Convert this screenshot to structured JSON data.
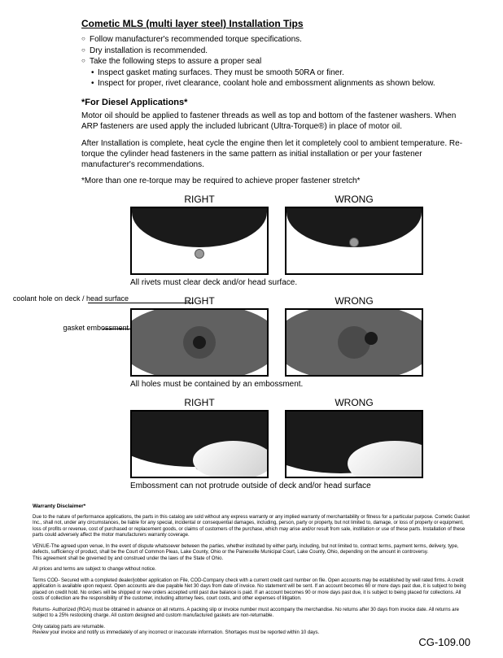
{
  "title": "Cometic MLS (multi layer steel) Installation Tips",
  "bullets": {
    "b1": "Follow manufacturer's recommended torque specifications.",
    "b2": "Dry installation is recommended.",
    "b3": "Take the following steps to assure a proper seal",
    "s1": "Inspect gasket mating surfaces.  They must be smooth 50RA or finer.",
    "s2": "Inspect for proper, rivet clearance, coolant hole and embossment alignments as shown below."
  },
  "diesel": {
    "heading": "*For Diesel Applications*",
    "p1": "Motor oil should be applied to fastener threads as well as top and bottom of the fastener washers. When ARP fasteners are used apply the included lubricant (Ultra-Torque®) in place of motor oil.",
    "p2": "After Installation is complete, heat cycle the engine then let it completely cool to ambient temperature. Re-torque the cylinder head fasteners in the same pattern as initial installation or per your fastener manufacturer's recommendations.",
    "note": "*More than one re-torque may be required to achieve proper fastener stretch*"
  },
  "labels": {
    "right": "RIGHT",
    "wrong": "WRONG",
    "cap1": "All rivets must clear deck and/or head surface.",
    "cap2": "All holes must be contained by an embossment.",
    "cap3": "Embossment can not protrude outside of deck and/or head surface",
    "side1": "coolant hole on deck / head surface",
    "side2": "gasket embossment"
  },
  "footer": {
    "wh": "Warranty Disclaimer*",
    "p1": "Due to the nature of performance applications, the parts in this catalog are sold without any express warranty or any implied warranty of merchantability or fitness for a particular purpose. Cometic Gasket Inc., shall not, under any circumstances, be liable for any special, incidental or consequential damages, including, person, party or property, but not limited to, damage, or loss of property or equipment, loss of profits or revenue, cost of purchased or replacement goods, or claims of customers of the purchase, which may arise and/or result from sale, instillation or use of these parts. Installation of these parts could adversely affect the motor manufacturers warranty coverage.",
    "p2": "VENUE-The agreed upon venue, In the event of dispute whatsoever between the parties, whether instituted by either party, including, but not limited to, contract terms, payment terms, delivery, type, defects, sufficiency of product, shall be the Court of Common Pleas, Lake County, Ohio or the Painesville Municipal Court, Lake County, Ohio, depending on the amount in controversy.",
    "p2b": "This agreement shall be governed by and construed under the laws of the State of Ohio.",
    "p3": "All prices and terms are subject to change without notice.",
    "p4": "Terms COD- Secured with a completed dealer/jobber application on File, COD-Company check with a current credit card number on file. Open accounts may be established by well rated firms. A credit application is available upon request. Open accounts are due payable Net 30 days from date of invoice. No statement will be sent. If an account becomes 60 or more days past due, it is subject to being placed on credit hold. No orders will be shipped or new orders accepted until past due balance is paid. If an account becomes 90 or more days past due, it is subject to being placed for collections. All costs of collection are the responsibility of the customer, including attorney fees, court costs, and other expenses of litigation.",
    "p5": "Returns- Authorized (RGA) must be obtained in advance on all returns. A packing slip or invoice number must accompany the merchandise. No returns after 30 days from invoice date. All returns are subject to a 25% restocking charge. All custom designed and custom manufactured gaskets are non-returnable.",
    "p6": "Only catalog parts are returnable.",
    "p6b": "Review your invoice and notify us immediately of any incorrect or inaccurate information. Shortages must be reported within 10 days."
  },
  "docnum": "CG-109.00"
}
